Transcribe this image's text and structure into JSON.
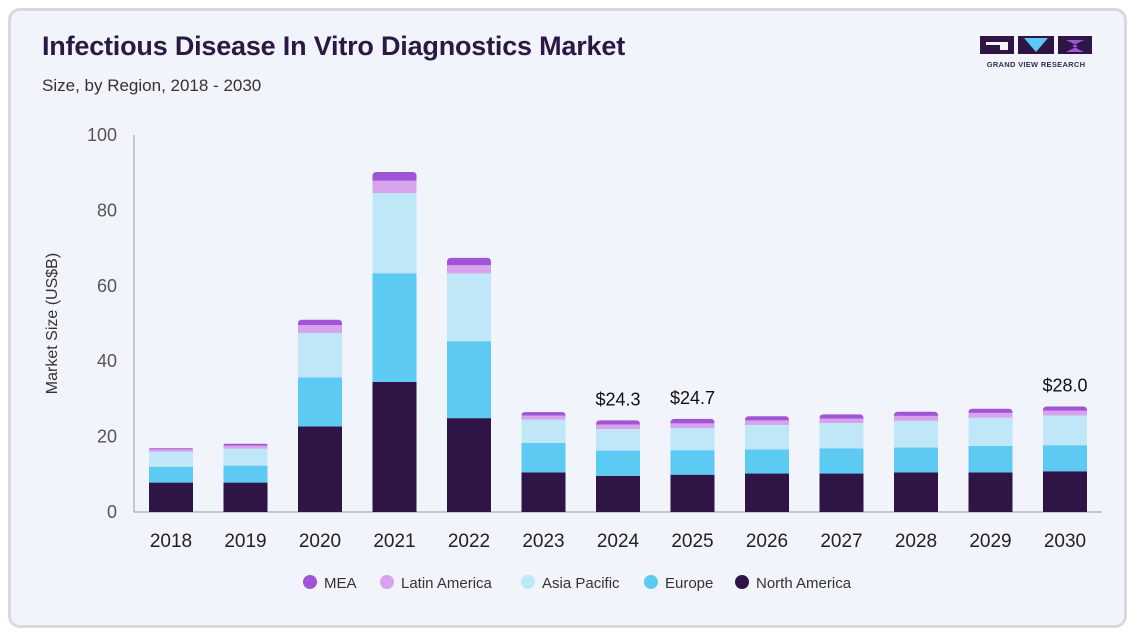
{
  "header": {
    "title": "Infectious Disease In Vitro Diagnostics Market",
    "subtitle": "Size, by Region, 2018 - 2030",
    "brand": "GRAND VIEW RESEARCH"
  },
  "colors": {
    "MEA": "#a054d6",
    "Latin America": "#d6a3ec",
    "Asia Pacific": "#bfe7f8",
    "Europe": "#5ccaf2",
    "North America": "#2f1446"
  },
  "chart_data": {
    "type": "bar",
    "stacked": true,
    "ylabel": "Market Size (US$B)",
    "xlabel": "",
    "ylim": [
      0,
      100
    ],
    "yticks": [
      0,
      20,
      40,
      60,
      80,
      100
    ],
    "categories": [
      "2018",
      "2019",
      "2020",
      "2021",
      "2022",
      "2023",
      "2024",
      "2025",
      "2026",
      "2027",
      "2028",
      "2029",
      "2030"
    ],
    "series": [
      {
        "name": "North America",
        "values": [
          7.8,
          7.8,
          22.7,
          34.5,
          24.9,
          10.5,
          9.6,
          9.9,
          10.2,
          10.2,
          10.5,
          10.5,
          10.8
        ]
      },
      {
        "name": "Europe",
        "values": [
          4.2,
          4.5,
          13.0,
          28.8,
          20.4,
          7.8,
          6.7,
          6.5,
          6.4,
          6.7,
          6.6,
          7.0,
          6.9
        ]
      },
      {
        "name": "Asia Pacific",
        "values": [
          4.0,
          4.5,
          11.8,
          21.3,
          18.0,
          6.2,
          5.7,
          5.9,
          6.5,
          6.7,
          7.1,
          7.5,
          7.9
        ]
      },
      {
        "name": "Latin America",
        "values": [
          0.6,
          0.8,
          2.1,
          3.3,
          2.2,
          1.1,
          1.2,
          1.2,
          1.2,
          1.2,
          1.3,
          1.3,
          1.3
        ]
      },
      {
        "name": "MEA",
        "values": [
          0.3,
          0.5,
          1.4,
          2.3,
          1.9,
          0.9,
          1.1,
          1.2,
          1.1,
          1.1,
          1.1,
          1.1,
          1.1
        ]
      }
    ],
    "data_labels": [
      {
        "category": "2024",
        "text": "$24.3"
      },
      {
        "category": "2025",
        "text": "$24.7"
      },
      {
        "category": "2030",
        "text": "$28.0"
      }
    ],
    "legend": {
      "placement": "bottom",
      "entries": [
        "MEA",
        "Latin America",
        "Asia Pacific",
        "Europe",
        "North America"
      ]
    },
    "grid": false
  }
}
